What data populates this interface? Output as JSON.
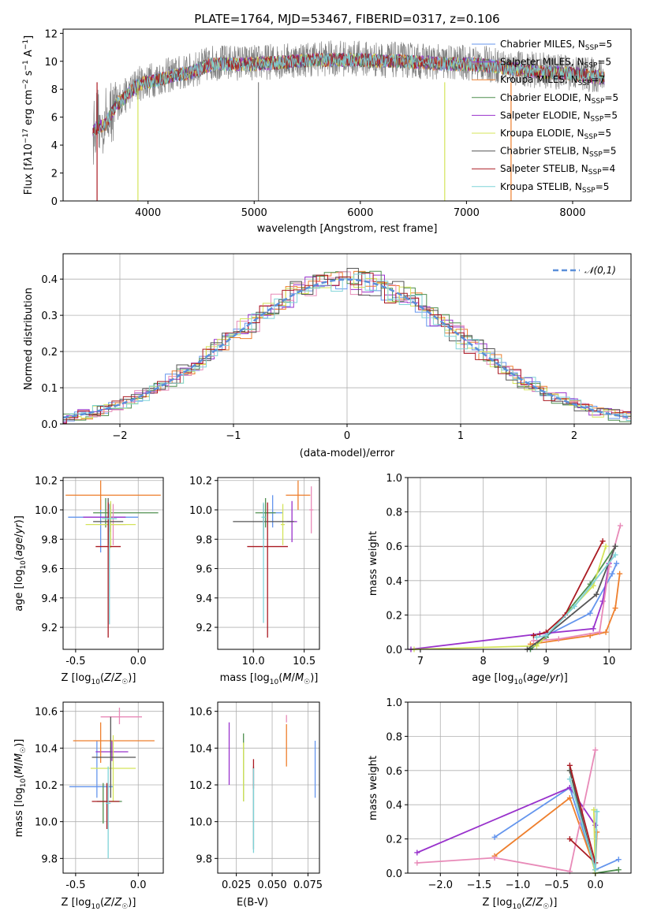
{
  "chart_data": [
    {
      "type": "line",
      "title": "PLATE=1764, MJD=53467, FIBERID=0317, z=0.106",
      "xlabel": "wavelength [Angstrom, rest frame]",
      "ylabel": "Flux [f_λ10^-17 erg cm^-2 s^-1 A^-1]",
      "xlim": [
        3200,
        8550
      ],
      "ylim": [
        0,
        12.3
      ],
      "xticks": [
        4000,
        5000,
        6000,
        7000,
        8000
      ],
      "yticks": [
        0,
        2,
        4,
        6,
        8,
        10,
        12
      ],
      "grid": false,
      "legend_position": "right",
      "data_series": {
        "name": "data",
        "color": "#808080",
        "x_range": [
          3480,
          8300
        ]
      },
      "series": [
        {
          "name": "Chabrier MILES, N_SSP=5",
          "color": "#6495ed"
        },
        {
          "name": "Salpeter MILES, N_SSP=5",
          "color": "#9932cc"
        },
        {
          "name": "Kroupa MILES, N_SSP=7",
          "color": "#ee7f2d"
        },
        {
          "name": "Chabrier ELODIE, N_SSP=5",
          "color": "#4f8f4f"
        },
        {
          "name": "Salpeter ELODIE, N_SSP=5",
          "color": "#9932cc"
        },
        {
          "name": "Kroupa ELODIE, N_SSP=5",
          "color": "#d4e45a"
        },
        {
          "name": "Chabrier STELIB, N_SSP=5",
          "color": "#555555"
        },
        {
          "name": "Salpeter STELIB, N_SSP=4",
          "color": "#aa1a22"
        },
        {
          "name": "Kroupa STELIB, N_SSP=5",
          "color": "#7fd3d8"
        }
      ],
      "envelope": [
        [
          3480,
          5.2
        ],
        [
          3600,
          5.6
        ],
        [
          3700,
          7.0
        ],
        [
          3800,
          7.6
        ],
        [
          3900,
          8.4
        ],
        [
          4000,
          8.6
        ],
        [
          4200,
          9.0
        ],
        [
          4400,
          9.3
        ],
        [
          4600,
          9.9
        ],
        [
          4800,
          9.9
        ],
        [
          5000,
          9.9
        ],
        [
          5200,
          10.0
        ],
        [
          5400,
          10.1
        ],
        [
          5600,
          10.2
        ],
        [
          5800,
          10.2
        ],
        [
          6000,
          10.2
        ],
        [
          6200,
          10.1
        ],
        [
          6400,
          10.1
        ],
        [
          6600,
          10.0
        ],
        [
          6800,
          9.9
        ],
        [
          7000,
          9.9
        ],
        [
          7200,
          9.8
        ],
        [
          7400,
          9.6
        ],
        [
          7600,
          9.4
        ],
        [
          7800,
          9.3
        ],
        [
          8000,
          9.2
        ],
        [
          8200,
          9.0
        ],
        [
          8300,
          8.9
        ]
      ]
    },
    {
      "type": "step",
      "xlabel": "(data-model)/error",
      "ylabel": "Normed distribution",
      "xlim": [
        -2.5,
        2.5
      ],
      "ylim": [
        0,
        0.47
      ],
      "xticks": [
        -2,
        -1,
        0,
        1,
        2
      ],
      "yticks": [
        0.0,
        0.1,
        0.2,
        0.3,
        0.4
      ],
      "grid": true,
      "legend_position": "top-right",
      "reference": {
        "name": "𝒩(0,1)",
        "color": "#5b8fd9",
        "sigma": 1
      },
      "colors": [
        "#6495ed",
        "#9932cc",
        "#ee7f2d",
        "#4f8f4f",
        "#e88ab8",
        "#d4e45a",
        "#555555",
        "#aa1a22",
        "#7fd3d8"
      ]
    },
    {
      "type": "scatter",
      "xlabel": "Z [log10(Z/Z☉)]",
      "ylabel": "age [log10(age/yr)]",
      "xlim": [
        -0.6,
        0.2
      ],
      "ylim": [
        9.05,
        10.22
      ],
      "xticks": [
        -0.5,
        0.0
      ],
      "yticks": [
        9.2,
        9.4,
        9.6,
        9.8,
        10.0,
        10.2
      ],
      "grid": true,
      "points": [
        {
          "x": -0.3,
          "xerr": [
            0.26,
            0.3
          ],
          "y": 9.95,
          "yerr": [
            0.24,
            0.12
          ],
          "color": "#6495ed"
        },
        {
          "x": -0.22,
          "xerr": [
            0.22,
            0.12
          ],
          "y": 9.95,
          "yerr": [
            0.1,
            0.1
          ],
          "color": "#9932cc"
        },
        {
          "x": -0.3,
          "xerr": [
            0.28,
            0.48
          ],
          "y": 10.1,
          "yerr": [
            0.1,
            0.1
          ],
          "color": "#ee7f2d"
        },
        {
          "x": -0.26,
          "xerr": [
            0.1,
            0.42
          ],
          "y": 9.98,
          "yerr": [
            0.1,
            0.1
          ],
          "color": "#4f8f4f"
        },
        {
          "x": -0.2,
          "xerr": [
            0.1,
            0.1
          ],
          "y": 9.9,
          "yerr": [
            0.14,
            0.14
          ],
          "color": "#e88ab8"
        },
        {
          "x": -0.22,
          "xerr": [
            0.2,
            0.2
          ],
          "y": 9.9,
          "yerr": [
            0.16,
            0.16
          ],
          "color": "#d4e45a"
        },
        {
          "x": -0.24,
          "xerr": [
            0.12,
            0.12
          ],
          "y": 9.92,
          "yerr": [
            0.16,
            0.16
          ],
          "color": "#555555"
        },
        {
          "x": -0.24,
          "xerr": [
            0.1,
            0.1
          ],
          "y": 9.75,
          "yerr": [
            0.62,
            0.3
          ],
          "color": "#aa1a22"
        },
        {
          "x": -0.23,
          "xerr": [
            0.06,
            0.06
          ],
          "y": 9.94,
          "yerr": [
            0.72,
            0.1
          ],
          "color": "#7fd3d8"
        }
      ]
    },
    {
      "type": "scatter",
      "xlabel": "mass [log10(M/M☉)]",
      "ylabel": "",
      "xlim": [
        9.65,
        10.65
      ],
      "ylim": [
        9.05,
        10.22
      ],
      "xticks": [
        10.0,
        10.5
      ],
      "yticks": [
        9.2,
        9.4,
        9.6,
        9.8,
        10.0,
        10.2
      ],
      "grid": true,
      "points": [
        {
          "x": 10.19,
          "xerr": [
            0.1,
            0.1
          ],
          "y": 9.98,
          "yerr": [
            0.1,
            0.12
          ],
          "color": "#6495ed"
        },
        {
          "x": 10.38,
          "xerr": [
            0.05,
            0.05
          ],
          "y": 9.92,
          "yerr": [
            0.14,
            0.14
          ],
          "color": "#9932cc"
        },
        {
          "x": 10.44,
          "xerr": [
            0.12,
            0.12
          ],
          "y": 10.1,
          "yerr": [
            0.1,
            0.1
          ],
          "color": "#ee7f2d"
        },
        {
          "x": 10.12,
          "xerr": [
            0.1,
            0.1
          ],
          "y": 9.98,
          "yerr": [
            0.1,
            0.1
          ],
          "color": "#4f8f4f"
        },
        {
          "x": 10.57,
          "xerr": [
            0.02,
            0.02
          ],
          "y": 10.0,
          "yerr": [
            0.16,
            0.16
          ],
          "color": "#e88ab8"
        },
        {
          "x": 10.29,
          "xerr": [
            0.02,
            0.02
          ],
          "y": 9.9,
          "yerr": [
            0.14,
            0.14
          ],
          "color": "#d4e45a"
        },
        {
          "x": 10.1,
          "xerr": [
            0.3,
            0.3
          ],
          "y": 9.92,
          "yerr": [
            0.12,
            0.12
          ],
          "color": "#555555"
        },
        {
          "x": 10.14,
          "xerr": [
            0.2,
            0.2
          ],
          "y": 9.75,
          "yerr": [
            0.62,
            0.3
          ],
          "color": "#aa1a22"
        },
        {
          "x": 10.1,
          "xerr": [
            0.02,
            0.02
          ],
          "y": 9.95,
          "yerr": [
            0.72,
            0.1
          ],
          "color": "#7fd3d8"
        }
      ]
    },
    {
      "type": "line",
      "xlabel": "age [log10(age/yr)]",
      "ylabel": "mass weight",
      "xlim": [
        6.8,
        10.35
      ],
      "ylim": [
        0,
        1.0
      ],
      "xticks": [
        7,
        8,
        9,
        10
      ],
      "yticks": [
        0.0,
        0.2,
        0.4,
        0.6,
        0.8,
        1.0
      ],
      "grid": true,
      "series": [
        {
          "color": "#6495ed",
          "x": [
            8.75,
            9.0,
            9.7,
            10.05,
            10.12
          ],
          "y": [
            0.0,
            0.08,
            0.21,
            0.44,
            0.5
          ]
        },
        {
          "color": "#9932cc",
          "x": [
            6.85,
            8.9,
            9.75,
            9.9,
            10.0
          ],
          "y": [
            0.0,
            0.09,
            0.12,
            0.28,
            0.5
          ]
        },
        {
          "color": "#ee7f2d",
          "x": [
            8.75,
            9.7,
            9.95,
            10.1,
            10.17
          ],
          "y": [
            0.03,
            0.08,
            0.1,
            0.24,
            0.44
          ]
        },
        {
          "color": "#4f8f4f",
          "x": [
            8.75,
            9.0,
            9.7,
            10.1
          ],
          "y": [
            0.0,
            0.07,
            0.38,
            0.6
          ]
        },
        {
          "color": "#e88ab8",
          "x": [
            8.8,
            9.2,
            9.85,
            10.0,
            10.18
          ],
          "y": [
            0.05,
            0.06,
            0.1,
            0.48,
            0.72
          ]
        },
        {
          "color": "#d4e45a",
          "x": [
            6.9,
            8.85,
            9.75,
            9.95
          ],
          "y": [
            0.0,
            0.02,
            0.37,
            0.6
          ]
        },
        {
          "color": "#555555",
          "x": [
            8.7,
            9.0,
            9.8,
            10.1
          ],
          "y": [
            0.0,
            0.08,
            0.32,
            0.6
          ]
        },
        {
          "color": "#aa1a22",
          "x": [
            8.8,
            9.0,
            9.3,
            9.9
          ],
          "y": [
            0.08,
            0.1,
            0.2,
            0.63
          ]
        },
        {
          "color": "#7fd3d8",
          "x": [
            8.85,
            9.0,
            9.45,
            10.1
          ],
          "y": [
            0.07,
            0.08,
            0.25,
            0.55
          ]
        }
      ]
    },
    {
      "type": "scatter",
      "xlabel": "Z [log10(Z/Z☉)]",
      "ylabel": "mass [log10(M/M☉)]",
      "xlim": [
        -0.6,
        0.2
      ],
      "ylim": [
        9.72,
        10.65
      ],
      "xticks": [
        -0.5,
        0.0
      ],
      "yticks": [
        9.8,
        10.0,
        10.2,
        10.4,
        10.6
      ],
      "grid": true,
      "points": [
        {
          "x": -0.33,
          "xerr": [
            0.22,
            0.13
          ],
          "y": 10.19,
          "yerr": [
            0.06,
            0.25
          ],
          "color": "#6495ed"
        },
        {
          "x": -0.21,
          "xerr": [
            0.13,
            0.13
          ],
          "y": 10.38,
          "yerr": [
            0.05,
            0.06
          ],
          "color": "#9932cc"
        },
        {
          "x": -0.3,
          "xerr": [
            0.22,
            0.43
          ],
          "y": 10.44,
          "yerr": [
            0.12,
            0.1
          ],
          "color": "#ee7f2d"
        },
        {
          "x": -0.28,
          "xerr": [
            0.05,
            0.15
          ],
          "y": 10.11,
          "yerr": [
            0.12,
            0.1
          ],
          "color": "#4f8f4f"
        },
        {
          "x": -0.15,
          "xerr": [
            0.15,
            0.18
          ],
          "y": 10.57,
          "yerr": [
            0.04,
            0.05
          ],
          "color": "#e88ab8"
        },
        {
          "x": -0.2,
          "xerr": [
            0.18,
            0.18
          ],
          "y": 10.29,
          "yerr": [
            0.18,
            0.18
          ],
          "color": "#d4e45a"
        },
        {
          "x": -0.22,
          "xerr": [
            0.15,
            0.2
          ],
          "y": 10.35,
          "yerr": [
            0.22,
            0.22
          ],
          "color": "#555555"
        },
        {
          "x": -0.25,
          "xerr": [
            0.12,
            0.1
          ],
          "y": 10.11,
          "yerr": [
            0.15,
            0.1
          ],
          "color": "#aa1a22"
        },
        {
          "x": -0.24,
          "xerr": [
            0.02,
            0.02
          ],
          "y": 10.1,
          "yerr": [
            0.3,
            0.2
          ],
          "color": "#7fd3d8"
        }
      ]
    },
    {
      "type": "scatter",
      "xlabel": "E(B-V)",
      "ylabel": "",
      "xlim": [
        0.012,
        0.083
      ],
      "ylim": [
        9.72,
        10.65
      ],
      "xticks": [
        0.025,
        0.05,
        0.075
      ],
      "yticks": [
        9.8,
        10.0,
        10.2,
        10.4,
        10.6
      ],
      "grid": true,
      "points": [
        {
          "x": 0.08,
          "y": 10.29,
          "yerr": [
            0.16,
            0.15
          ],
          "color": "#6495ed"
        },
        {
          "x": 0.02,
          "y": 10.37,
          "yerr": [
            0.17,
            0.17
          ],
          "color": "#9932cc"
        },
        {
          "x": 0.06,
          "y": 10.41,
          "yerr": [
            0.11,
            0.12
          ],
          "color": "#ee7f2d"
        },
        {
          "x": 0.03,
          "y": 10.29,
          "yerr": [
            0.18,
            0.19
          ],
          "color": "#4f8f4f"
        },
        {
          "x": 0.06,
          "y": 10.56,
          "yerr": [
            0.02,
            0.02
          ],
          "color": "#e88ab8"
        },
        {
          "x": 0.03,
          "y": 10.27,
          "yerr": [
            0.16,
            0.16
          ],
          "color": "#d4e45a"
        },
        {
          "x": 0.037,
          "y": 10.2,
          "yerr": [
            0.35,
            0.1
          ],
          "color": "#555555"
        },
        {
          "x": 0.037,
          "y": 10.28,
          "yerr": [
            0.1,
            0.06
          ],
          "color": "#aa1a22"
        },
        {
          "x": 0.037,
          "y": 10.09,
          "yerr": [
            0.26,
            0.2
          ],
          "color": "#7fd3d8"
        }
      ]
    },
    {
      "type": "line",
      "xlabel": "Z [log10(Z/Z☉)]",
      "ylabel": "mass weight",
      "xlim": [
        -2.42,
        0.46
      ],
      "ylim": [
        0,
        1.0
      ],
      "xticks": [
        -2.0,
        -1.5,
        -1.0,
        -0.5,
        0.0
      ],
      "yticks": [
        0.0,
        0.2,
        0.4,
        0.6,
        0.8,
        1.0
      ],
      "grid": true,
      "series": [
        {
          "color": "#6495ed",
          "x": [
            -1.3,
            -0.33,
            0.0,
            0.3
          ],
          "y": [
            0.21,
            0.5,
            0.02,
            0.08
          ]
        },
        {
          "color": "#9932cc",
          "x": [
            -2.3,
            -0.33,
            0.0
          ],
          "y": [
            0.12,
            0.5,
            0.28
          ]
        },
        {
          "color": "#ee7f2d",
          "x": [
            -1.3,
            -0.33,
            0.0,
            0.02
          ],
          "y": [
            0.1,
            0.44,
            0.02,
            0.24
          ]
        },
        {
          "color": "#4f8f4f",
          "x": [
            -0.33,
            0.0,
            0.3
          ],
          "y": [
            0.6,
            0.0,
            0.02
          ]
        },
        {
          "color": "#e88ab8",
          "x": [
            -2.3,
            -1.3,
            -0.33,
            0.0
          ],
          "y": [
            0.06,
            0.09,
            0.01,
            0.72
          ]
        },
        {
          "color": "#d4e45a",
          "x": [
            -0.33,
            0.0,
            -0.02
          ],
          "y": [
            0.6,
            0.0,
            0.37
          ]
        },
        {
          "color": "#555555",
          "x": [
            -0.33,
            0.0
          ],
          "y": [
            0.6,
            0.02
          ]
        },
        {
          "color": "#aa1a22",
          "x": [
            -0.33,
            0.0,
            -0.33
          ],
          "y": [
            0.63,
            0.06,
            0.2
          ]
        },
        {
          "color": "#7fd3d8",
          "x": [
            -0.33,
            0.0,
            0.02
          ],
          "y": [
            0.55,
            0.02,
            0.36
          ]
        }
      ]
    }
  ]
}
